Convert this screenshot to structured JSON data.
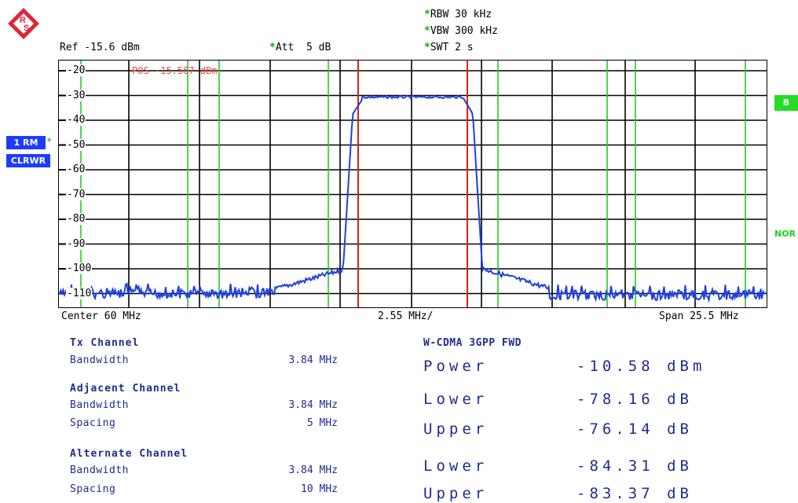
{
  "header": {
    "ref_level": "Ref -15.6 dBm",
    "att": "Att  5 dB",
    "rbw": "RBW 30 kHz",
    "vbw": "VBW 300 kHz",
    "swt": "SWT 2 s",
    "star": "*"
  },
  "side": {
    "trace_mode": "1 RM",
    "trace_clear": "CLRWR",
    "b_label": "B",
    "nor_label": "NOR"
  },
  "plot": {
    "pos_marker": "POS -15.567 dBm",
    "y_ticks": [
      "-20",
      "-30",
      "-40",
      "-50",
      "-60",
      "-70",
      "-80",
      "-90",
      "-100",
      "-110"
    ]
  },
  "footer": {
    "center": "Center 60 MHz",
    "per_div": "2.55 MHz/",
    "span": "Span 25.5 MHz"
  },
  "results": {
    "tx_channel": {
      "title": "Tx Channel",
      "bandwidth_label": "Bandwidth",
      "bandwidth_value": "3.84 MHz"
    },
    "adjacent_channel": {
      "title": "Adjacent Channel",
      "bandwidth_label": "Bandwidth",
      "bandwidth_value": "3.84 MHz",
      "spacing_label": "Spacing",
      "spacing_value": "5 MHz"
    },
    "alternate_channel": {
      "title": "Alternate Channel",
      "bandwidth_label": "Bandwidth",
      "bandwidth_value": "3.84 MHz",
      "spacing_label": "Spacing",
      "spacing_value": "10 MHz"
    },
    "standard": "W-CDMA 3GPP FWD",
    "power_label": "Power",
    "power_value": "-10.58 dBm",
    "adj_lower_label": "Lower",
    "adj_lower_value": "-78.16 dB",
    "adj_upper_label": "Upper",
    "adj_upper_value": "-76.14 dB",
    "alt_lower_label": "Lower",
    "alt_lower_value": "-84.31 dB",
    "alt_upper_label": "Upper",
    "alt_upper_value": "-83.37 dB"
  },
  "colors": {
    "trace": "#1f3fe0",
    "tx_channel_lines": "#e02010",
    "adjacent_lines": "#22cc22",
    "grid": "#000000",
    "label_blue": "#1f2d8f"
  },
  "icons": {
    "logo": "rohde-schwarz-logo-icon"
  }
}
